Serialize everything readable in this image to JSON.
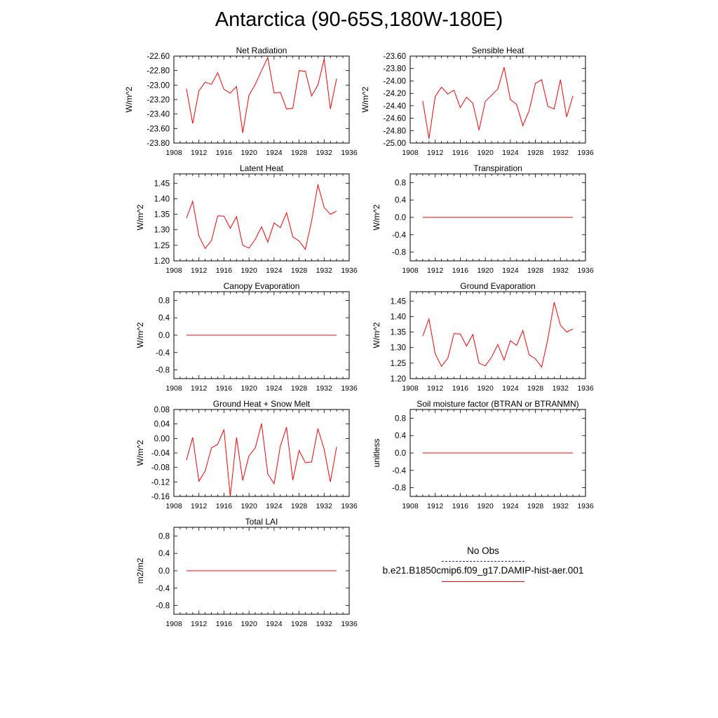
{
  "title": "Antarctica (90-65S,180W-180E)",
  "colors": {
    "series": "#ff0000",
    "obs": "#2222aa",
    "axis": "#000000"
  },
  "legend": {
    "obs_label": "No Obs",
    "model_label": "b.e21.B1850cmip6.f09_g17.DAMIP-hist-aer.001"
  },
  "chart_data": [
    {
      "type": "line",
      "title": "Net Radiation",
      "ylabel": "W/m^2",
      "xlim": [
        1908,
        1936
      ],
      "xticks": [
        1908,
        1912,
        1916,
        1920,
        1924,
        1928,
        1932,
        1936
      ],
      "ylim": [
        -23.8,
        -22.6
      ],
      "yticks": [
        -23.8,
        -23.6,
        -23.4,
        -23.2,
        -23.0,
        -22.8,
        -22.6
      ],
      "ytick_labels": [
        "-23.80",
        "-23.60",
        "-23.40",
        "-23.20",
        "-23.00",
        "-22.80",
        "-22.60"
      ],
      "x": [
        1910,
        1911,
        1912,
        1913,
        1914,
        1915,
        1916,
        1917,
        1918,
        1919,
        1920,
        1921,
        1922,
        1923,
        1924,
        1925,
        1926,
        1927,
        1928,
        1929,
        1930,
        1931,
        1932,
        1933,
        1934
      ],
      "series": [
        {
          "values": [
            -23.05,
            -23.53,
            -23.08,
            -22.96,
            -22.99,
            -22.83,
            -23.06,
            -23.11,
            -23.02,
            -23.66,
            -23.14,
            -22.99,
            -22.8,
            -22.62,
            -23.11,
            -23.1,
            -23.33,
            -23.32,
            -22.8,
            -22.81,
            -23.15,
            -23.0,
            -22.64,
            -23.33,
            -22.91
          ]
        }
      ]
    },
    {
      "type": "line",
      "title": "Sensible Heat",
      "ylabel": "W/m^2",
      "xlim": [
        1908,
        1936
      ],
      "xticks": [
        1908,
        1912,
        1916,
        1920,
        1924,
        1928,
        1932,
        1936
      ],
      "ylim": [
        -25.0,
        -23.6
      ],
      "yticks": [
        -25.0,
        -24.8,
        -24.6,
        -24.4,
        -24.2,
        -24.0,
        -23.8,
        -23.6
      ],
      "ytick_labels": [
        "-25.00",
        "-24.80",
        "-24.60",
        "-24.40",
        "-24.20",
        "-24.00",
        "-23.80",
        "-23.60"
      ],
      "x": [
        1910,
        1911,
        1912,
        1913,
        1914,
        1915,
        1916,
        1917,
        1918,
        1919,
        1920,
        1921,
        1922,
        1923,
        1924,
        1925,
        1926,
        1927,
        1928,
        1929,
        1930,
        1931,
        1932,
        1933,
        1934
      ],
      "series": [
        {
          "values": [
            -24.32,
            -24.93,
            -24.25,
            -24.1,
            -24.21,
            -24.15,
            -24.43,
            -24.26,
            -24.36,
            -24.79,
            -24.33,
            -24.23,
            -24.13,
            -23.78,
            -24.3,
            -24.38,
            -24.72,
            -24.48,
            -24.04,
            -23.98,
            -24.41,
            -24.45,
            -23.98,
            -24.58,
            -24.24
          ]
        }
      ]
    },
    {
      "type": "line",
      "title": "Latent Heat",
      "ylabel": "W/m^2",
      "xlim": [
        1908,
        1936
      ],
      "xticks": [
        1908,
        1912,
        1916,
        1920,
        1924,
        1928,
        1932,
        1936
      ],
      "ylim": [
        1.2,
        1.48
      ],
      "yticks": [
        1.2,
        1.25,
        1.3,
        1.35,
        1.4,
        1.45
      ],
      "ytick_labels": [
        "1.20",
        "1.25",
        "1.30",
        "1.35",
        "1.40",
        "1.45"
      ],
      "x": [
        1910,
        1911,
        1912,
        1913,
        1914,
        1915,
        1916,
        1917,
        1918,
        1919,
        1920,
        1921,
        1922,
        1923,
        1924,
        1925,
        1926,
        1927,
        1928,
        1929,
        1930,
        1931,
        1932,
        1933,
        1934
      ],
      "series": [
        {
          "values": [
            1.337,
            1.392,
            1.28,
            1.24,
            1.265,
            1.345,
            1.344,
            1.305,
            1.342,
            1.25,
            1.241,
            1.269,
            1.31,
            1.26,
            1.322,
            1.307,
            1.355,
            1.277,
            1.264,
            1.237,
            1.328,
            1.446,
            1.372,
            1.35,
            1.36
          ]
        }
      ]
    },
    {
      "type": "line",
      "title": "Transpiration",
      "ylabel": "W/m^2",
      "xlim": [
        1908,
        1936
      ],
      "xticks": [
        1908,
        1912,
        1916,
        1920,
        1924,
        1928,
        1932,
        1936
      ],
      "ylim": [
        -1.0,
        1.0
      ],
      "yticks": [
        -0.8,
        -0.4,
        0.0,
        0.4,
        0.8
      ],
      "ytick_labels": [
        "-0.8",
        "-0.4",
        "0.0",
        "0.4",
        "0.8"
      ],
      "x": [
        1910,
        1911,
        1912,
        1913,
        1914,
        1915,
        1916,
        1917,
        1918,
        1919,
        1920,
        1921,
        1922,
        1923,
        1924,
        1925,
        1926,
        1927,
        1928,
        1929,
        1930,
        1931,
        1932,
        1933,
        1934
      ],
      "series": [
        {
          "values": [
            0,
            0,
            0,
            0,
            0,
            0,
            0,
            0,
            0,
            0,
            0,
            0,
            0,
            0,
            0,
            0,
            0,
            0,
            0,
            0,
            0,
            0,
            0,
            0,
            0
          ]
        }
      ]
    },
    {
      "type": "line",
      "title": "Canopy Evaporation",
      "ylabel": "W/m^2",
      "xlim": [
        1908,
        1936
      ],
      "xticks": [
        1908,
        1912,
        1916,
        1920,
        1924,
        1928,
        1932,
        1936
      ],
      "ylim": [
        -1.0,
        1.0
      ],
      "yticks": [
        -0.8,
        -0.4,
        0.0,
        0.4,
        0.8
      ],
      "ytick_labels": [
        "-0.8",
        "-0.4",
        "0.0",
        "0.4",
        "0.8"
      ],
      "x": [
        1910,
        1911,
        1912,
        1913,
        1914,
        1915,
        1916,
        1917,
        1918,
        1919,
        1920,
        1921,
        1922,
        1923,
        1924,
        1925,
        1926,
        1927,
        1928,
        1929,
        1930,
        1931,
        1932,
        1933,
        1934
      ],
      "series": [
        {
          "values": [
            0,
            0,
            0,
            0,
            0,
            0,
            0,
            0,
            0,
            0,
            0,
            0,
            0,
            0,
            0,
            0,
            0,
            0,
            0,
            0,
            0,
            0,
            0,
            0,
            0
          ]
        }
      ]
    },
    {
      "type": "line",
      "title": "Ground Evaporation",
      "ylabel": "W/m^2",
      "xlim": [
        1908,
        1936
      ],
      "xticks": [
        1908,
        1912,
        1916,
        1920,
        1924,
        1928,
        1932,
        1936
      ],
      "ylim": [
        1.2,
        1.48
      ],
      "yticks": [
        1.2,
        1.25,
        1.3,
        1.35,
        1.4,
        1.45
      ],
      "ytick_labels": [
        "1.20",
        "1.25",
        "1.30",
        "1.35",
        "1.40",
        "1.45"
      ],
      "x": [
        1910,
        1911,
        1912,
        1913,
        1914,
        1915,
        1916,
        1917,
        1918,
        1919,
        1920,
        1921,
        1922,
        1923,
        1924,
        1925,
        1926,
        1927,
        1928,
        1929,
        1930,
        1931,
        1932,
        1933,
        1934
      ],
      "series": [
        {
          "values": [
            1.337,
            1.392,
            1.28,
            1.24,
            1.265,
            1.345,
            1.344,
            1.305,
            1.342,
            1.25,
            1.241,
            1.269,
            1.31,
            1.26,
            1.322,
            1.307,
            1.355,
            1.277,
            1.264,
            1.237,
            1.328,
            1.446,
            1.372,
            1.35,
            1.36
          ]
        }
      ]
    },
    {
      "type": "line",
      "title": "Ground Heat + Snow Melt",
      "ylabel": "W/m^2",
      "xlim": [
        1908,
        1936
      ],
      "xticks": [
        1908,
        1912,
        1916,
        1920,
        1924,
        1928,
        1932,
        1936
      ],
      "ylim": [
        -0.16,
        0.08
      ],
      "yticks": [
        -0.16,
        -0.12,
        -0.08,
        -0.04,
        0.0,
        0.04,
        0.08
      ],
      "ytick_labels": [
        "-0.16",
        "-0.12",
        "-0.08",
        "-0.04",
        "0.00",
        "0.04",
        "0.08"
      ],
      "x": [
        1910,
        1911,
        1912,
        1913,
        1914,
        1915,
        1916,
        1917,
        1918,
        1919,
        1920,
        1921,
        1922,
        1923,
        1924,
        1925,
        1926,
        1927,
        1928,
        1929,
        1930,
        1931,
        1932,
        1933,
        1934
      ],
      "series": [
        {
          "values": [
            -0.06,
            0.003,
            -0.118,
            -0.09,
            -0.026,
            -0.016,
            0.025,
            -0.16,
            0.003,
            -0.116,
            -0.048,
            -0.026,
            0.041,
            -0.098,
            -0.125,
            -0.021,
            0.031,
            -0.115,
            -0.033,
            -0.067,
            -0.065,
            0.027,
            -0.03,
            -0.12,
            -0.023
          ]
        }
      ]
    },
    {
      "type": "line",
      "title": "Soil moisture factor (BTRAN or BTRANMN)",
      "ylabel": "unitless",
      "xlim": [
        1908,
        1936
      ],
      "xticks": [
        1908,
        1912,
        1916,
        1920,
        1924,
        1928,
        1932,
        1936
      ],
      "ylim": [
        -1.0,
        1.0
      ],
      "yticks": [
        -0.8,
        -0.4,
        0.0,
        0.4,
        0.8
      ],
      "ytick_labels": [
        "-0.8",
        "-0.4",
        "0.0",
        "0.4",
        "0.8"
      ],
      "x": [
        1910,
        1911,
        1912,
        1913,
        1914,
        1915,
        1916,
        1917,
        1918,
        1919,
        1920,
        1921,
        1922,
        1923,
        1924,
        1925,
        1926,
        1927,
        1928,
        1929,
        1930,
        1931,
        1932,
        1933,
        1934
      ],
      "series": [
        {
          "values": [
            0,
            0,
            0,
            0,
            0,
            0,
            0,
            0,
            0,
            0,
            0,
            0,
            0,
            0,
            0,
            0,
            0,
            0,
            0,
            0,
            0,
            0,
            0,
            0,
            0
          ]
        }
      ]
    },
    {
      "type": "line",
      "title": "Total LAI",
      "ylabel": "m2/m2",
      "xlim": [
        1908,
        1936
      ],
      "xticks": [
        1908,
        1912,
        1916,
        1920,
        1924,
        1928,
        1932,
        1936
      ],
      "ylim": [
        -1.0,
        1.0
      ],
      "yticks": [
        -0.8,
        -0.4,
        0.0,
        0.4,
        0.8
      ],
      "ytick_labels": [
        "-0.8",
        "-0.4",
        "0.0",
        "0.4",
        "0.8"
      ],
      "x": [
        1910,
        1911,
        1912,
        1913,
        1914,
        1915,
        1916,
        1917,
        1918,
        1919,
        1920,
        1921,
        1922,
        1923,
        1924,
        1925,
        1926,
        1927,
        1928,
        1929,
        1930,
        1931,
        1932,
        1933,
        1934
      ],
      "series": [
        {
          "values": [
            0,
            0,
            0,
            0,
            0,
            0,
            0,
            0,
            0,
            0,
            0,
            0,
            0,
            0,
            0,
            0,
            0,
            0,
            0,
            0,
            0,
            0,
            0,
            0,
            0
          ]
        }
      ]
    }
  ]
}
